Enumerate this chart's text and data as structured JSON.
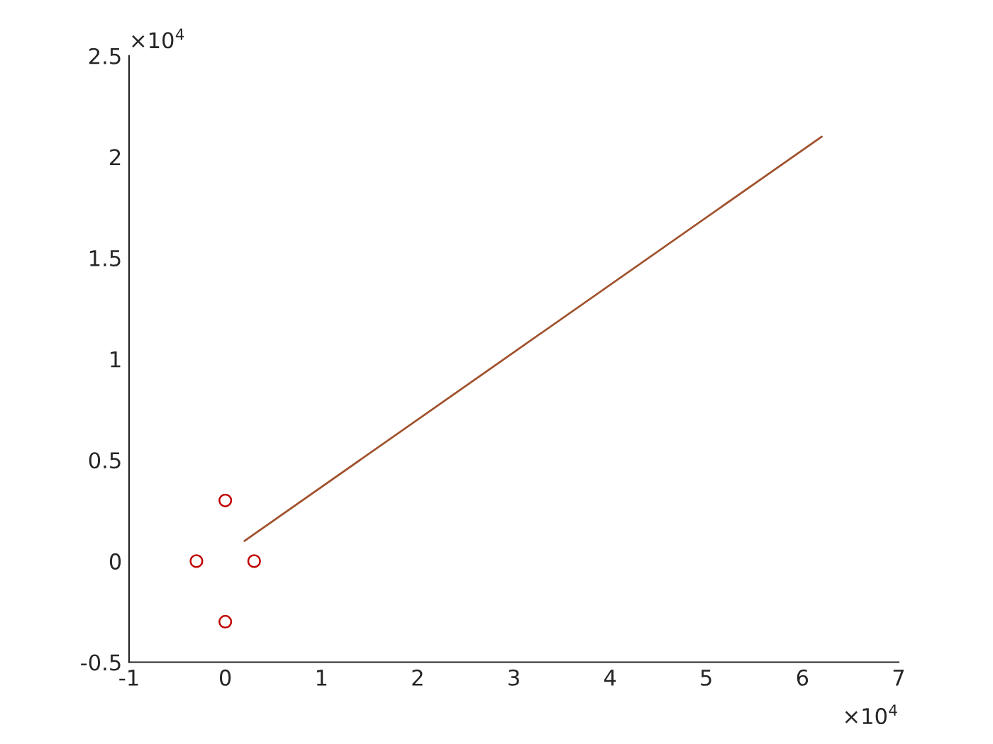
{
  "chart_data": {
    "type": "scatter",
    "series": [
      {
        "color": "#c00000",
        "x": [
          -0.3,
          0.3,
          0,
          0
        ],
        "values": [
          0,
          0,
          0.3,
          -0.3
        ],
        "marker": "circle"
      },
      {
        "type": "line",
        "color": "#a0522d",
        "x": [
          0.2,
          6.2
        ],
        "values": [
          0.1,
          2.1
        ],
        "marker": "none"
      }
    ],
    "xlim": [
      -1,
      7
    ],
    "ylim": [
      -0.5,
      2.5
    ],
    "xticks": [
      -1,
      0,
      1,
      2,
      3,
      4,
      5,
      6,
      7
    ],
    "yticks": [
      -0.5,
      0,
      0.5,
      1,
      1.5,
      2,
      2.5
    ],
    "annotations": [
      "×10$^{4}$",
      "×10$^{4}$"
    ],
    "grid": false,
    "legend": false
  }
}
